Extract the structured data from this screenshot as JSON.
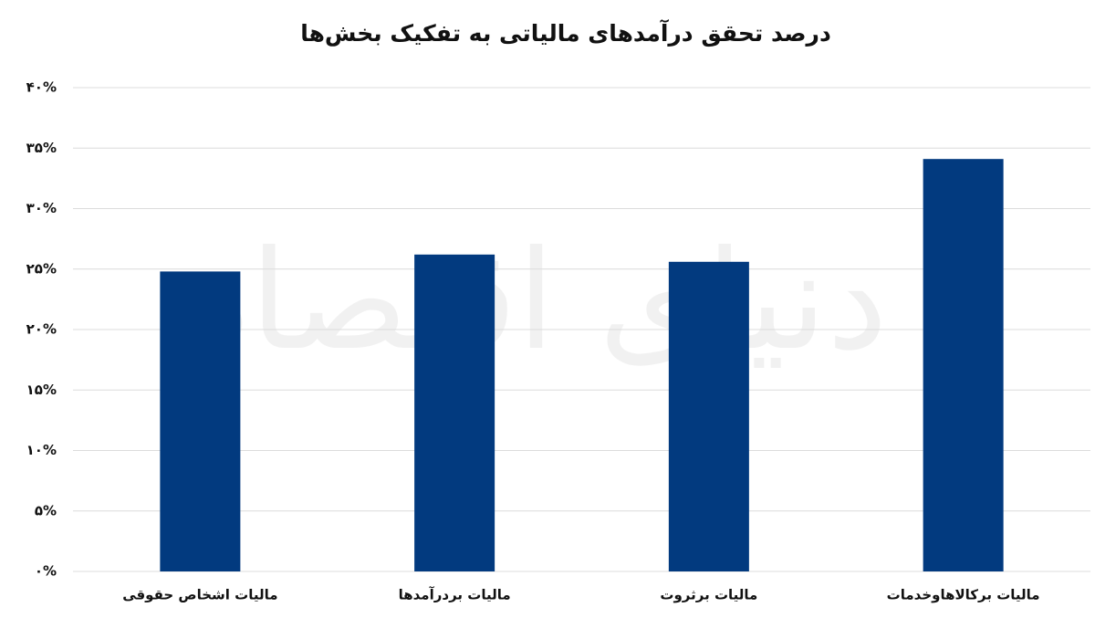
{
  "chart_data": {
    "type": "bar",
    "title": "درصد تحقق درآمدهای مالیاتی به تفکیک بخش‌ها",
    "watermark": "دنیای اقتصاد",
    "categories": [
      "مالیات اشخاص حقوقی",
      "مالیات بردرآمدها",
      "مالیات برثروت",
      "مالیات برکالاهاوخدمات"
    ],
    "values": [
      24.8,
      26.2,
      25.6,
      34.1
    ],
    "color": "#023a7f",
    "ylim": [
      0,
      40
    ],
    "yticks": [
      {
        "value": 0,
        "label": "۰%"
      },
      {
        "value": 5,
        "label": "۵%"
      },
      {
        "value": 10,
        "label": "۱۰%"
      },
      {
        "value": 15,
        "label": "۱۵%"
      },
      {
        "value": 20,
        "label": "۲۰%"
      },
      {
        "value": 25,
        "label": "۲۵%"
      },
      {
        "value": 30,
        "label": "۳۰%"
      },
      {
        "value": 35,
        "label": "۳۵%"
      },
      {
        "value": 40,
        "label": "۴۰%"
      }
    ],
    "grid": true
  }
}
